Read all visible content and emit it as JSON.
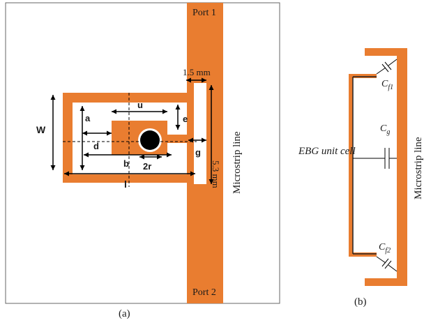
{
  "figure_a": {
    "port1": "Port 1",
    "port2": "Port 2",
    "microstrip_label": "Microstrip line",
    "dim_gap_top": "1.5 mm",
    "dim_length": "5.3 mm",
    "dim_W": "W",
    "dim_l": "l",
    "dim_a": "a",
    "dim_b": "b",
    "dim_d": "d",
    "dim_u": "u",
    "dim_e": "e",
    "dim_g": "g",
    "dim_2r": "2r",
    "caption": "(a)"
  },
  "figure_b": {
    "ebg_label": "EBG unit cell",
    "microstrip_label": "Microstrip line",
    "cap_top_base": "C",
    "cap_top_sub": "f1",
    "cap_mid_base": "C",
    "cap_mid_sub": "g",
    "cap_bot_base": "C",
    "cap_bot_sub": "f2",
    "caption": "(b)"
  },
  "colors": {
    "copper": "#e97d30",
    "line": "#000000",
    "dash": "#000000"
  }
}
